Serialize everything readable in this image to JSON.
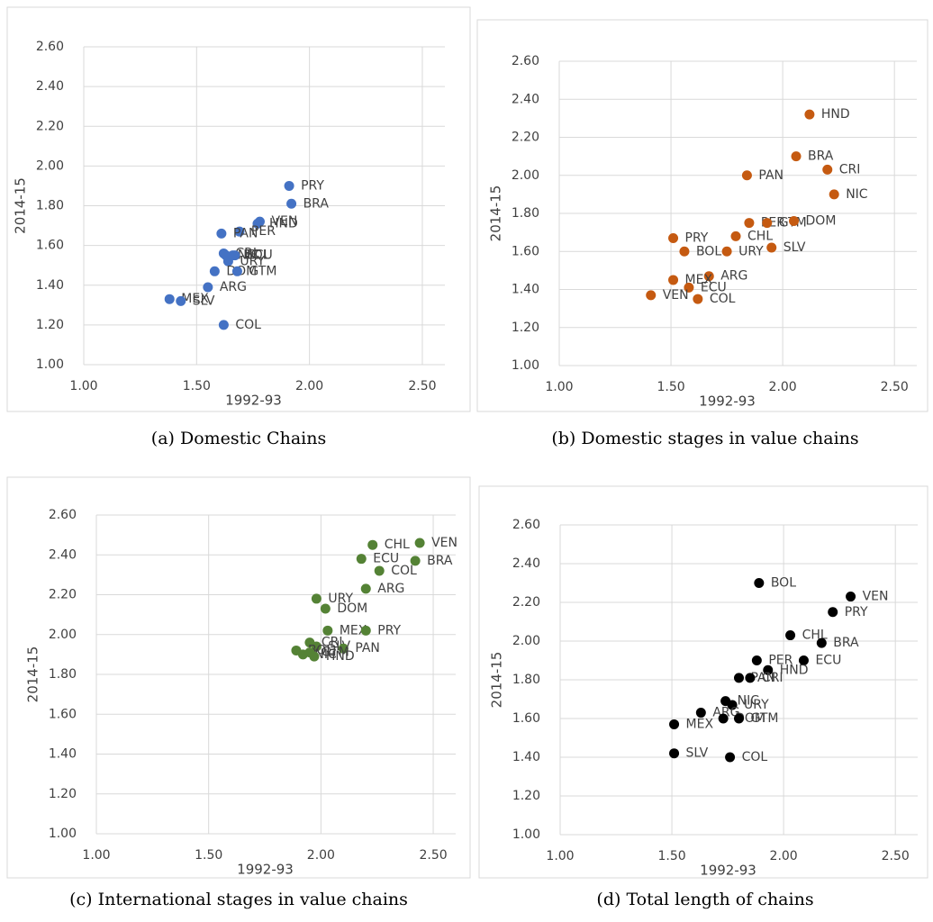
{
  "chart_data": [
    {
      "type": "scatter",
      "caption": "(a) Domestic Chains",
      "x_label": "1992-93",
      "y_label": "2014-15",
      "color": "#4472c4",
      "grid": true,
      "categories": [
        "PRY",
        "BRA",
        "VEN",
        "HND",
        "PER",
        "PAN",
        "CRI",
        "NIC",
        "BOL",
        "URY",
        "ECU",
        "DOM",
        "GTM",
        "ARG",
        "MEX",
        "SLV",
        "COL"
      ],
      "x": [
        1.91,
        1.92,
        1.78,
        1.77,
        1.69,
        1.61,
        1.62,
        1.63,
        1.66,
        1.64,
        1.67,
        1.58,
        1.68,
        1.55,
        1.38,
        1.43,
        1.62
      ],
      "values": [
        1.9,
        1.81,
        1.72,
        1.71,
        1.67,
        1.66,
        1.56,
        1.55,
        1.55,
        1.52,
        1.55,
        1.47,
        1.47,
        1.39,
        1.33,
        1.32,
        1.2
      ],
      "xlim": [
        1,
        2.6
      ],
      "ylim": [
        1,
        2.6
      ],
      "xticks": [
        {
          "value": 1,
          "label": "1.00"
        },
        {
          "value": 1.5,
          "label": "1.50"
        },
        {
          "value": 2,
          "label": "2.00"
        },
        {
          "value": 2.5,
          "label": "2.50"
        }
      ],
      "yticks": [
        {
          "value": 1,
          "label": "1.00"
        },
        {
          "value": 1.2,
          "label": "1.20"
        },
        {
          "value": 1.4,
          "label": "1.40"
        },
        {
          "value": 1.6,
          "label": "1.60"
        },
        {
          "value": 1.8,
          "label": "1.80"
        },
        {
          "value": 2,
          "label": "2.00"
        },
        {
          "value": 2.2,
          "label": "2.20"
        },
        {
          "value": 2.4,
          "label": "2.40"
        },
        {
          "value": 2.6,
          "label": "2.60"
        }
      ]
    },
    {
      "type": "scatter",
      "caption": "(b) Domestic stages in value chains",
      "x_label": "1992-93",
      "y_label": "2014-15",
      "color": "#c55a11",
      "grid": true,
      "categories": [
        "HND",
        "BRA",
        "CRI",
        "PAN",
        "NIC",
        "PER",
        "GTM",
        "DOM",
        "CHL",
        "PRY",
        "BOL",
        "URY",
        "SLV",
        "ARG",
        "MEX",
        "ECU",
        "VEN",
        "COL"
      ],
      "x": [
        2.12,
        2.06,
        2.2,
        1.84,
        2.23,
        1.85,
        1.93,
        2.05,
        1.79,
        1.51,
        1.56,
        1.75,
        1.95,
        1.67,
        1.51,
        1.58,
        1.41,
        1.62
      ],
      "values": [
        2.32,
        2.1,
        2.03,
        2.0,
        1.9,
        1.75,
        1.75,
        1.76,
        1.68,
        1.67,
        1.6,
        1.6,
        1.62,
        1.47,
        1.45,
        1.41,
        1.37,
        1.35
      ],
      "xlim": [
        1,
        2.6
      ],
      "ylim": [
        1,
        2.6
      ],
      "xticks": [
        {
          "value": 1,
          "label": "1.00"
        },
        {
          "value": 1.5,
          "label": "1.50"
        },
        {
          "value": 2,
          "label": "2.00"
        },
        {
          "value": 2.5,
          "label": "2.50"
        }
      ],
      "yticks": [
        {
          "value": 1,
          "label": "1.00"
        },
        {
          "value": 1.2,
          "label": "1.20"
        },
        {
          "value": 1.4,
          "label": "1.40"
        },
        {
          "value": 1.6,
          "label": "1.60"
        },
        {
          "value": 1.8,
          "label": "1.80"
        },
        {
          "value": 2,
          "label": "2.00"
        },
        {
          "value": 2.2,
          "label": "2.20"
        },
        {
          "value": 2.4,
          "label": "2.40"
        },
        {
          "value": 2.6,
          "label": "2.60"
        }
      ]
    },
    {
      "type": "scatter",
      "caption": "(c) International stages in value chains",
      "x_label": "1992-93",
      "y_label": "2014-15",
      "color": "#548235",
      "grid": true,
      "categories": [
        "VEN",
        "CHL",
        "BRA",
        "ECU",
        "COL",
        "ARG",
        "URY",
        "DOM",
        "MEX",
        "PRY",
        "CRI",
        "SLV",
        "PAN",
        "BOL",
        "NIC",
        "GTM",
        "HND"
      ],
      "x": [
        2.44,
        2.23,
        2.42,
        2.18,
        2.26,
        2.2,
        1.98,
        2.02,
        2.03,
        2.2,
        1.95,
        1.98,
        2.1,
        1.89,
        1.92,
        1.95,
        1.97
      ],
      "values": [
        2.46,
        2.45,
        2.37,
        2.38,
        2.32,
        2.23,
        2.18,
        2.13,
        2.02,
        2.02,
        1.96,
        1.94,
        1.93,
        1.92,
        1.9,
        1.91,
        1.89
      ],
      "xlim": [
        1,
        2.6
      ],
      "ylim": [
        1,
        2.6
      ],
      "xticks": [
        {
          "value": 1,
          "label": "1.00"
        },
        {
          "value": 1.5,
          "label": "1.50"
        },
        {
          "value": 2,
          "label": "2.00"
        },
        {
          "value": 2.5,
          "label": "2.50"
        }
      ],
      "yticks": [
        {
          "value": 1,
          "label": "1.00"
        },
        {
          "value": 1.2,
          "label": "1.20"
        },
        {
          "value": 1.4,
          "label": "1.40"
        },
        {
          "value": 1.6,
          "label": "1.60"
        },
        {
          "value": 1.8,
          "label": "1.80"
        },
        {
          "value": 2,
          "label": "2.00"
        },
        {
          "value": 2.2,
          "label": "2.20"
        },
        {
          "value": 2.4,
          "label": "2.40"
        },
        {
          "value": 2.6,
          "label": "2.60"
        }
      ]
    },
    {
      "type": "scatter",
      "caption": "(d) Total length of chains",
      "x_label": "1992-93",
      "y_label": "2014-15",
      "color": "#000000",
      "grid": true,
      "categories": [
        "BOL",
        "VEN",
        "PRY",
        "CHL",
        "BRA",
        "PER",
        "ECU",
        "HND",
        "PAN",
        "CRI",
        "NIC",
        "URY",
        "ARG",
        "DOM",
        "GTM",
        "MEX",
        "SLV",
        "COL"
      ],
      "x": [
        1.89,
        2.3,
        2.22,
        2.03,
        2.17,
        1.88,
        2.09,
        1.93,
        1.8,
        1.85,
        1.74,
        1.77,
        1.63,
        1.73,
        1.8,
        1.51,
        1.51,
        1.76
      ],
      "values": [
        2.3,
        2.23,
        2.15,
        2.03,
        1.99,
        1.9,
        1.9,
        1.85,
        1.81,
        1.81,
        1.69,
        1.67,
        1.63,
        1.6,
        1.6,
        1.57,
        1.42,
        1.4
      ],
      "xlim": [
        1,
        2.6
      ],
      "ylim": [
        1,
        2.6
      ],
      "xticks": [
        {
          "value": 1,
          "label": "1.00"
        },
        {
          "value": 1.5,
          "label": "1.50"
        },
        {
          "value": 2,
          "label": "2.00"
        },
        {
          "value": 2.5,
          "label": "2.50"
        }
      ],
      "yticks": [
        {
          "value": 1,
          "label": "1.00"
        },
        {
          "value": 1.2,
          "label": "1.20"
        },
        {
          "value": 1.4,
          "label": "1.40"
        },
        {
          "value": 1.6,
          "label": "1.60"
        },
        {
          "value": 1.8,
          "label": "1.80"
        },
        {
          "value": 2,
          "label": "2.00"
        },
        {
          "value": 2.2,
          "label": "2.20"
        },
        {
          "value": 2.4,
          "label": "2.40"
        },
        {
          "value": 2.6,
          "label": "2.60"
        }
      ]
    }
  ]
}
